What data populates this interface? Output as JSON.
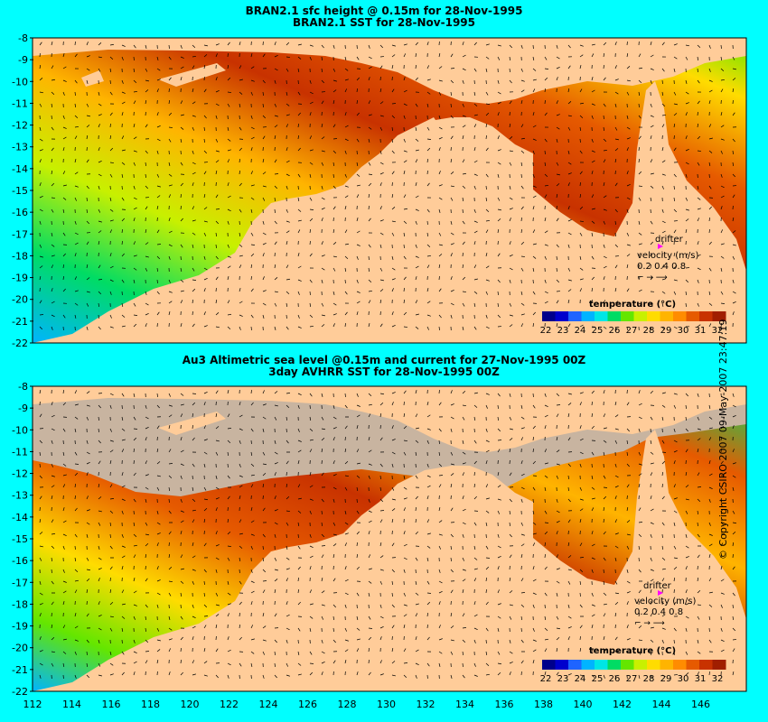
{
  "top_panel": {
    "title_line1": "BRAN2.1 sfc height @ 0.15m for 28-Nov-1995",
    "title_line2": "BRAN2.1  SST for 28-Nov-1995"
  },
  "bottom_panel": {
    "title_line1": "Au3 Altimetric sea level  @0.15m and current for 27-Nov-1995 00Z",
    "title_line2": "3day AVHRR SST for 28-Nov-1995 00Z"
  },
  "axes": {
    "lat_labels": [
      "-8",
      "-9",
      "-10",
      "-11",
      "-12",
      "-13",
      "-14",
      "-15",
      "-16",
      "-17",
      "-18",
      "-19",
      "-20",
      "-21",
      "-22"
    ],
    "lon_labels": [
      "112",
      "114",
      "116",
      "118",
      "120",
      "122",
      "124",
      "126",
      "128",
      "130",
      "132",
      "134",
      "136",
      "138",
      "140",
      "142",
      "144",
      "146"
    ]
  },
  "colorbar": {
    "title": "temperature (°C)",
    "ticks": [
      "22",
      "23",
      "24",
      "25",
      "26",
      "27",
      "28",
      "29",
      "30",
      "31",
      "32"
    ],
    "colors": [
      "#00008b",
      "#0000cd",
      "#1e64ff",
      "#00b4ff",
      "#00e6e6",
      "#00dc64",
      "#64e600",
      "#c8f000",
      "#ffdc00",
      "#ffb400",
      "#ff8c00",
      "#e65a00",
      "#c83200",
      "#a01e00"
    ]
  },
  "legend": {
    "drifter_label": "drifter",
    "velocity_label": "velocity (m/s)",
    "velocity_values": "0.2 0.4 0.8",
    "drifter_color": "#ff00ff"
  },
  "colors": {
    "background": "#00ffff",
    "land": "#ffcc99",
    "nodata": "#c8b4a0"
  },
  "copyright": "© Copyright CSIRO 2007   09-May-2007 23:47:19"
}
